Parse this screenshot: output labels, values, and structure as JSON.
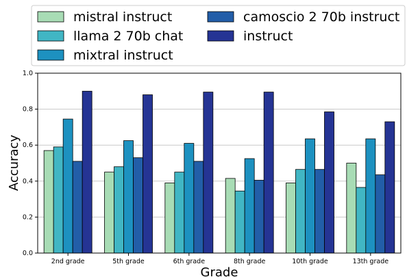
{
  "chart_data": {
    "type": "bar",
    "title": "",
    "xlabel": "Grade",
    "ylabel": "Accuracy",
    "ylim": [
      0.0,
      1.0
    ],
    "yticks": [
      "0.0",
      "0.2",
      "0.4",
      "0.6",
      "0.8",
      "1.0"
    ],
    "grid": "horizontal",
    "legend_position": "top",
    "categories": [
      "2nd grade",
      "5th grade",
      "6th grade",
      "8th grade",
      "10th grade",
      "13th grade"
    ],
    "series": [
      {
        "name": "mistral instruct",
        "color": "#a8dcb5",
        "values": [
          0.57,
          0.45,
          0.39,
          0.415,
          0.39,
          0.5
        ]
      },
      {
        "name": "llama 2 70b chat",
        "color": "#41b6c4",
        "values": [
          0.59,
          0.48,
          0.45,
          0.345,
          0.465,
          0.365
        ]
      },
      {
        "name": "mixtral instruct",
        "color": "#1d91c0",
        "values": [
          0.745,
          0.625,
          0.61,
          0.525,
          0.635,
          0.635
        ]
      },
      {
        "name": "camoscio 2 70b instruct",
        "color": "#225ea8",
        "values": [
          0.51,
          0.53,
          0.51,
          0.405,
          0.465,
          0.435
        ]
      },
      {
        "name": "instruct",
        "color": "#253494",
        "values": [
          0.9,
          0.88,
          0.895,
          0.895,
          0.785,
          0.73
        ]
      }
    ]
  }
}
